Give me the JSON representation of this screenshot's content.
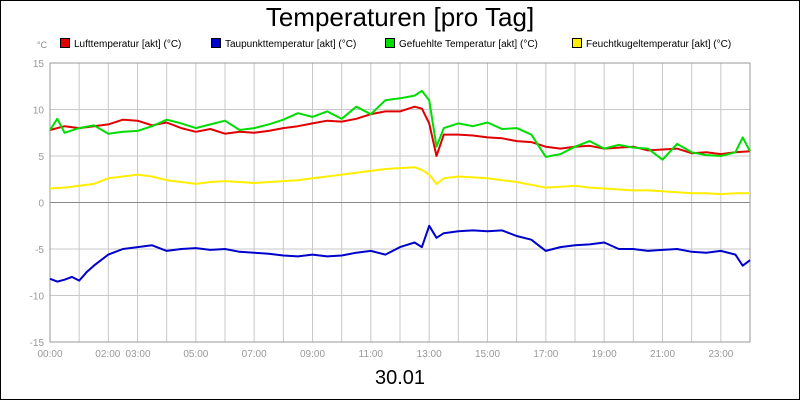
{
  "chart_data": {
    "type": "line",
    "title": "Temperaturen [pro Tag]",
    "date": "30.01",
    "unit": "°C",
    "ylim": [
      -15,
      15
    ],
    "yticks": [
      15,
      10,
      5,
      0,
      -5,
      -10,
      -15
    ],
    "xlim": [
      0,
      24
    ],
    "xticks": [
      {
        "v": 0,
        "label": "00:00"
      },
      {
        "v": 2,
        "label": "02:00"
      },
      {
        "v": 3,
        "label": "03:00"
      },
      {
        "v": 5,
        "label": "05:00"
      },
      {
        "v": 7,
        "label": "07:00"
      },
      {
        "v": 9,
        "label": "09:00"
      },
      {
        "v": 11,
        "label": "11:00"
      },
      {
        "v": 13,
        "label": "13:00"
      },
      {
        "v": 15,
        "label": "15:00"
      },
      {
        "v": 17,
        "label": "17:00"
      },
      {
        "v": 19,
        "label": "19:00"
      },
      {
        "v": 21,
        "label": "21:00"
      },
      {
        "v": 23,
        "label": "23:00"
      }
    ],
    "grid": true,
    "legend_position": "top",
    "series": [
      {
        "name": "Lufttemperatur [akt] (°C)",
        "color": "#e00000",
        "x": [
          0,
          0.5,
          1,
          1.5,
          2,
          2.5,
          3,
          3.5,
          4,
          4.5,
          5,
          5.5,
          6,
          6.5,
          7,
          7.5,
          8,
          8.5,
          9,
          9.5,
          10,
          10.5,
          11,
          11.5,
          12,
          12.5,
          12.75,
          13,
          13.25,
          13.5,
          14,
          14.5,
          15,
          15.5,
          16,
          16.5,
          17,
          17.5,
          18,
          18.5,
          19,
          19.5,
          20,
          20.5,
          21,
          21.5,
          22,
          22.5,
          23,
          23.5,
          24
        ],
        "y": [
          7.8,
          8.2,
          8.0,
          8.2,
          8.4,
          8.9,
          8.8,
          8.3,
          8.6,
          8.0,
          7.6,
          7.9,
          7.4,
          7.6,
          7.5,
          7.7,
          8.0,
          8.2,
          8.5,
          8.8,
          8.7,
          9.0,
          9.5,
          9.8,
          9.8,
          10.3,
          10.1,
          8.5,
          5.0,
          7.3,
          7.3,
          7.2,
          7.0,
          6.9,
          6.6,
          6.5,
          6.0,
          5.8,
          6.0,
          6.1,
          5.8,
          5.9,
          6.0,
          5.6,
          5.7,
          5.8,
          5.3,
          5.4,
          5.2,
          5.4,
          5.5
        ]
      },
      {
        "name": "Taupunkttemperatur [akt] (°C)",
        "color": "#0000cc",
        "x": [
          0,
          0.25,
          0.5,
          0.75,
          1,
          1.25,
          1.5,
          2,
          2.5,
          3,
          3.5,
          4,
          4.5,
          5,
          5.5,
          6,
          6.5,
          7,
          7.5,
          8,
          8.5,
          9,
          9.5,
          10,
          10.5,
          11,
          11.5,
          12,
          12.5,
          12.75,
          13,
          13.25,
          13.5,
          14,
          14.5,
          15,
          15.5,
          16,
          16.5,
          17,
          17.5,
          18,
          18.5,
          19,
          19.5,
          20,
          20.5,
          21,
          21.5,
          22,
          22.5,
          23,
          23.5,
          23.75,
          24
        ],
        "y": [
          -8.2,
          -8.5,
          -8.3,
          -8.0,
          -8.4,
          -7.5,
          -6.8,
          -5.6,
          -5.0,
          -4.8,
          -4.6,
          -5.2,
          -5.0,
          -4.9,
          -5.1,
          -5.0,
          -5.3,
          -5.4,
          -5.5,
          -5.7,
          -5.8,
          -5.6,
          -5.8,
          -5.7,
          -5.4,
          -5.2,
          -5.6,
          -4.8,
          -4.3,
          -4.8,
          -2.5,
          -3.8,
          -3.3,
          -3.1,
          -3.0,
          -3.1,
          -3.0,
          -3.6,
          -4.0,
          -5.2,
          -4.8,
          -4.6,
          -4.5,
          -4.3,
          -5.0,
          -5.0,
          -5.2,
          -5.1,
          -5.0,
          -5.3,
          -5.4,
          -5.2,
          -5.6,
          -6.8,
          -6.2
        ]
      },
      {
        "name": "Gefuehlte Temperatur [akt] (°C)",
        "color": "#00dd00",
        "x": [
          0,
          0.25,
          0.5,
          1,
          1.5,
          2,
          2.5,
          3,
          3.5,
          4,
          4.5,
          5,
          5.5,
          6,
          6.5,
          7,
          7.5,
          8,
          8.5,
          9,
          9.5,
          10,
          10.5,
          11,
          11.5,
          12,
          12.5,
          12.75,
          13,
          13.25,
          13.5,
          14,
          14.5,
          15,
          15.5,
          16,
          16.5,
          17,
          17.5,
          18,
          18.5,
          19,
          19.5,
          20,
          20.5,
          21,
          21.5,
          22,
          22.5,
          23,
          23.5,
          23.75,
          24
        ],
        "y": [
          7.8,
          9.0,
          7.5,
          8.0,
          8.3,
          7.4,
          7.6,
          7.7,
          8.2,
          8.9,
          8.5,
          8.0,
          8.4,
          8.8,
          7.8,
          8.0,
          8.4,
          8.9,
          9.6,
          9.2,
          9.8,
          9.0,
          10.3,
          9.5,
          11.0,
          11.2,
          11.5,
          12.0,
          11.0,
          6.0,
          8.0,
          8.5,
          8.2,
          8.6,
          7.9,
          8.0,
          7.3,
          4.9,
          5.2,
          6.0,
          6.6,
          5.8,
          6.2,
          5.9,
          5.8,
          4.6,
          6.3,
          5.4,
          5.1,
          5.0,
          5.4,
          7.0,
          5.5
        ]
      },
      {
        "name": "Feuchtkugeltemperatur [akt] (°C)",
        "color": "#ffee00",
        "x": [
          0,
          0.5,
          1,
          1.5,
          2,
          2.5,
          3,
          3.5,
          4,
          4.5,
          5,
          5.5,
          6,
          6.5,
          7,
          7.5,
          8,
          8.5,
          9,
          9.5,
          10,
          10.5,
          11,
          11.5,
          12,
          12.5,
          12.75,
          13,
          13.25,
          13.5,
          14,
          14.5,
          15,
          15.5,
          16,
          16.5,
          17,
          17.5,
          18,
          18.5,
          19,
          19.5,
          20,
          20.5,
          21,
          21.5,
          22,
          22.5,
          23,
          23.5,
          24
        ],
        "y": [
          1.5,
          1.6,
          1.8,
          2.0,
          2.6,
          2.8,
          3.0,
          2.8,
          2.4,
          2.2,
          2.0,
          2.2,
          2.3,
          2.2,
          2.1,
          2.2,
          2.3,
          2.4,
          2.6,
          2.8,
          3.0,
          3.2,
          3.4,
          3.6,
          3.7,
          3.8,
          3.5,
          3.0,
          2.0,
          2.6,
          2.8,
          2.7,
          2.6,
          2.4,
          2.2,
          1.9,
          1.6,
          1.7,
          1.8,
          1.6,
          1.5,
          1.4,
          1.3,
          1.3,
          1.2,
          1.1,
          1.0,
          1.0,
          0.9,
          1.0,
          1.0
        ]
      }
    ]
  }
}
